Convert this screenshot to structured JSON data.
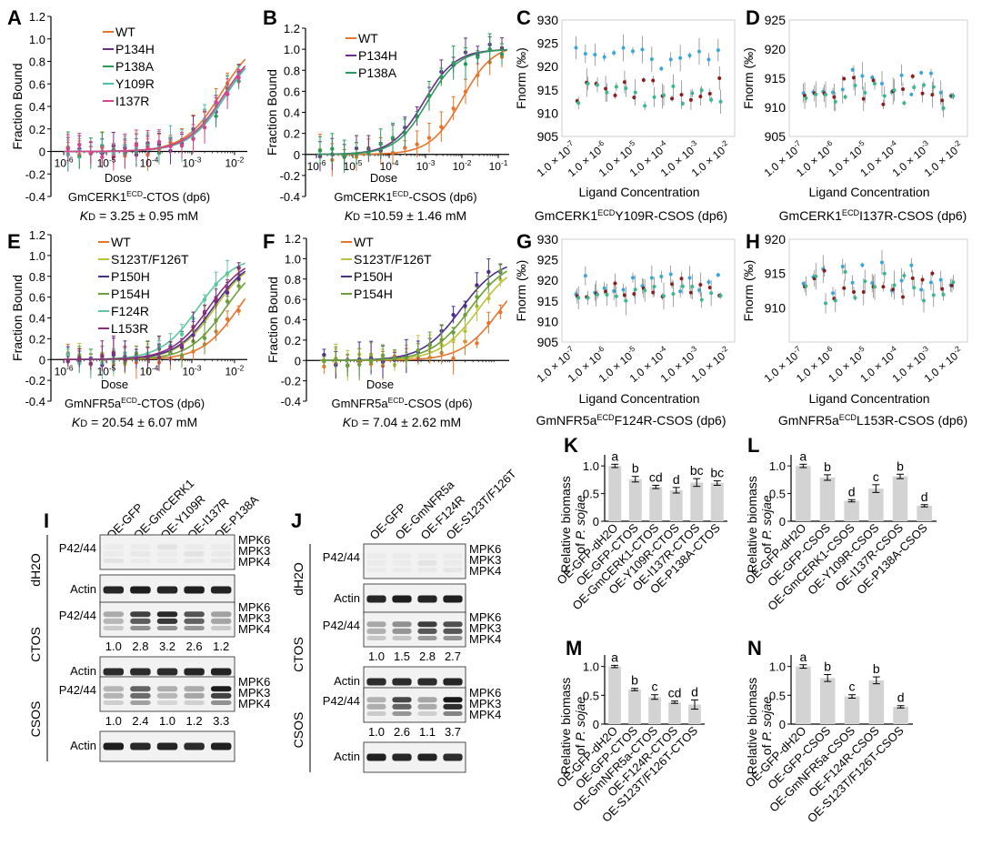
{
  "colors": {
    "WT": "#e8732b",
    "P134H": "#6b2f86",
    "P138A": "#2a9a5c",
    "Y109R": "#4bbfae",
    "I137R": "#d6458b",
    "S123T_F126T": "#b9c23a",
    "P150H": "#4b2f8f",
    "P154H": "#6a9f3a",
    "F124R": "#5ac7a0",
    "L153R": "#8a2f7e",
    "dot_blue": "#3aa7dc",
    "dot_red": "#8b1c1c",
    "dot_green": "#39b98a",
    "bar": "#d3d3d3"
  },
  "chart_data": [
    {
      "panel": "A",
      "type": "line",
      "xlabel": "Dose",
      "ylabel": "Fraction Bound",
      "xticks": [
        "10-6",
        "10-5",
        "10-4",
        "10-3",
        "10-2"
      ],
      "ylim": [
        -0.4,
        1.2
      ],
      "yticks": [
        "-0.4",
        "-0.2",
        "0",
        "0.2",
        "0.4",
        "0.6",
        "0.8",
        "1.0",
        "1.2"
      ],
      "legend": [
        "WT",
        "P134H",
        "P138A",
        "Y109R",
        "I137R"
      ],
      "subtitle": "GmCERK1ECD-CTOS (dp6)",
      "kd": "KD = 3.25 ± 0.95 mM",
      "series": [
        {
          "name": "WT",
          "kd_log": -2.3,
          "top": 1.05
        },
        {
          "name": "P134H",
          "kd_log": -2.25,
          "top": 1.0
        },
        {
          "name": "P138A",
          "kd_log": -2.2,
          "top": 1.0
        },
        {
          "name": "Y109R",
          "kd_log": -2.2,
          "top": 1.0
        },
        {
          "name": "I137R",
          "kd_log": -2.25,
          "top": 1.0
        }
      ]
    },
    {
      "panel": "B",
      "type": "line",
      "xlabel": "Dose",
      "ylabel": "Fraction Bound",
      "xticks": [
        "10-6",
        "10-5",
        "10-4",
        "10-3",
        "10-2",
        "10-1"
      ],
      "ylim": [
        -0.4,
        1.2
      ],
      "yticks": [
        "-0.4",
        "-0.2",
        "0",
        "0.2",
        "0.4",
        "0.6",
        "0.8",
        "1.0",
        "1.2"
      ],
      "legend": [
        "WT",
        "P134H",
        "P138A"
      ],
      "subtitle": "GmCERK1ECD-CSOS (dp6)",
      "kd": "KD =10.59 ± 1.46 mM",
      "series": [
        {
          "name": "WT",
          "kd_log": -2.0,
          "top": 1.05
        },
        {
          "name": "P134H",
          "kd_log": -3.05,
          "top": 1.0
        },
        {
          "name": "P138A",
          "kd_log": -2.95,
          "top": 1.0
        }
      ]
    },
    {
      "panel": "E",
      "type": "line",
      "xlabel": "Dose",
      "ylabel": "Fraction Bound",
      "xticks": [
        "10-6",
        "10-5",
        "10-4",
        "10-3",
        "10-2"
      ],
      "ylim": [
        -0.4,
        1.2
      ],
      "yticks": [
        "-0.4",
        "-0.2",
        "0",
        "0.2",
        "0.4",
        "0.6",
        "0.8",
        "1.0",
        "1.2"
      ],
      "legend": [
        "WT",
        "S123T/F126T",
        "P150H",
        "P154H",
        "F124R",
        "L153R"
      ],
      "subtitle": "GmNFR5aECD-CTOS (dp6)",
      "kd": "KD = 20.54 ± 6.07 mM",
      "series": [
        {
          "name": "WT",
          "kd_log": -1.9,
          "top": 1.0
        },
        {
          "name": "S123T_F126T",
          "kd_log": -2.45,
          "top": 1.0
        },
        {
          "name": "P150H",
          "kd_log": -2.5,
          "top": 1.0
        },
        {
          "name": "P154H",
          "kd_log": -2.2,
          "top": 1.0
        },
        {
          "name": "F124R",
          "kd_log": -2.85,
          "top": 1.0
        },
        {
          "name": "L153R",
          "kd_log": -2.6,
          "top": 1.0
        }
      ]
    },
    {
      "panel": "F",
      "type": "line",
      "xlabel": "Dose",
      "ylabel": "Fraction Bound",
      "xticks": [],
      "ylim": [
        -0.4,
        1.2
      ],
      "yticks": [
        "-0.4",
        "-0.2",
        "0",
        "0.2",
        "0.4",
        "0.6",
        "0.8",
        "1.0",
        "1.2"
      ],
      "legend": [
        "WT",
        "S123T/F126T",
        "P150H",
        "P154H"
      ],
      "subtitle": "GmNFR5aECD-CSOS (dp6)",
      "kd": "KD = 7.04 ± 2.62 mM",
      "series": [
        {
          "name": "WT",
          "kd_log": -1.9,
          "top": 1.0
        },
        {
          "name": "S123T_F126T",
          "kd_log": -2.4,
          "top": 1.0
        },
        {
          "name": "P150H",
          "kd_log": -2.8,
          "top": 1.0
        },
        {
          "name": "P154H",
          "kd_log": -2.6,
          "top": 1.0
        }
      ]
    },
    {
      "panel": "C",
      "type": "scatter",
      "xlabel": "Ligand Concentration",
      "ylabel": "Fnorm (‰)",
      "ylim": [
        905,
        930
      ],
      "yticks": [
        "930",
        "925",
        "920",
        "915",
        "910",
        "905"
      ],
      "xticks": [
        "1.0 × 10-7",
        "1.0 × 10-6",
        "1.0 × 10-5",
        "1.0 × 10-4",
        "1.0 × 10-3",
        "1.0 × 10-2"
      ],
      "subtitle": "GmCERK1ECDY109R-CSOS (dp6)",
      "series": [
        {
          "name": "blue",
          "center": 922
        },
        {
          "name": "red",
          "center": 915
        },
        {
          "name": "green",
          "center": 914
        }
      ]
    },
    {
      "panel": "D",
      "type": "scatter",
      "xlabel": "Ligand Concentration",
      "ylabel": "Fnorm (‰)",
      "ylim": [
        905,
        925
      ],
      "yticks": [
        "925",
        "920",
        "915",
        "910",
        "905"
      ],
      "xticks": [
        "1.0 × 10-7",
        "1.0 × 10-6",
        "1.0 × 10-5",
        "1.0 × 10-4",
        "1.0 × 10-3",
        "1.0 × 10-2"
      ],
      "subtitle": "GmCERK1ECDI137R-CSOS (dp6)",
      "series": [
        {
          "name": "blue",
          "center": 914
        },
        {
          "name": "red",
          "center": 913
        },
        {
          "name": "green",
          "center": 912
        }
      ]
    },
    {
      "panel": "G",
      "type": "scatter",
      "xlabel": "Ligand Concentration",
      "ylabel": "Fnorm (‰)",
      "ylim": [
        905,
        930
      ],
      "yticks": [
        "930",
        "925",
        "920",
        "915",
        "910",
        "905"
      ],
      "xticks": [
        "1.0 × 10-7",
        "1.0 × 10-6",
        "1.0 × 10-5",
        "1.0 × 10-4",
        "1.0 × 10-3",
        "1.0 × 10-2"
      ],
      "subtitle": "GmNFR5aECDF124R-CSOS (dp6)",
      "series": [
        {
          "name": "blue",
          "center": 919
        },
        {
          "name": "red",
          "center": 918
        },
        {
          "name": "green",
          "center": 917
        }
      ]
    },
    {
      "panel": "H",
      "type": "scatter",
      "xlabel": "Ligand Concentration",
      "ylabel": "Fnorm (‰)",
      "ylim": [
        905,
        920
      ],
      "yticks": [
        "920",
        "915",
        "910"
      ],
      "xticks": [
        "1.0 × 10-7",
        "1.0 × 10-6",
        "1.0 × 10-5",
        "1.0 × 10-4",
        "1.0 × 10-3",
        "1.0 × 10-2"
      ],
      "subtitle": "GmNFR5aECDL153R-CSOS (dp6)",
      "series": [
        {
          "name": "blue",
          "center": 914.5
        },
        {
          "name": "red",
          "center": 913.5
        },
        {
          "name": "green",
          "center": 913
        }
      ]
    },
    {
      "panel": "K",
      "type": "bar",
      "ylabel": "Relative biomass",
      "ylabel2": "of P. sojae",
      "ylim": [
        0,
        1.2
      ],
      "yticks": [
        "0",
        "0.5",
        "1.0"
      ],
      "categories": [
        "OE-GFP-dH2O",
        "OE-GFP-CTOS",
        "OE-GmCERK1-CTOS",
        "OE-Y109R-CTOS",
        "OE-I137R-CTOS",
        "OE-P138A-CTOS"
      ],
      "values": [
        1.0,
        0.76,
        0.62,
        0.56,
        0.7,
        0.69
      ],
      "errors": [
        0.03,
        0.05,
        0.03,
        0.05,
        0.07,
        0.04
      ],
      "letters": [
        "a",
        "b",
        "cd",
        "d",
        "bc",
        "bc"
      ]
    },
    {
      "panel": "L",
      "type": "bar",
      "ylabel": "Relative biomass",
      "ylabel2": "of P. sojae",
      "ylim": [
        0,
        1.2
      ],
      "yticks": [
        "0",
        "0.5",
        "1.0"
      ],
      "categories": [
        "OE-GFP-dH2O",
        "OE-GFP-CSOS",
        "OE-GmCERK1-CSOS",
        "OE-Y109R-CSOS",
        "OE-I137R-CSOS",
        "OE-P138A-CSOS"
      ],
      "values": [
        1.0,
        0.79,
        0.37,
        0.59,
        0.81,
        0.28
      ],
      "errors": [
        0.03,
        0.05,
        0.02,
        0.07,
        0.04,
        0.02
      ],
      "letters": [
        "a",
        "b",
        "d",
        "c",
        "b",
        "d"
      ]
    },
    {
      "panel": "M",
      "type": "bar",
      "ylabel": "Relative biomass",
      "ylabel2": "of P. sojae",
      "ylim": [
        0,
        1.2
      ],
      "yticks": [
        "0",
        "0.5",
        "1.0"
      ],
      "categories": [
        "OE-GFP-dH2O",
        "OE-GFP-CTOS",
        "OE-GmNFR5a-CTOS",
        "OE-F124R-CTOS",
        "OE-S123T/F126T-CTOS"
      ],
      "values": [
        1.0,
        0.6,
        0.47,
        0.38,
        0.34
      ],
      "errors": [
        0.02,
        0.02,
        0.04,
        0.02,
        0.08
      ],
      "letters": [
        "a",
        "b",
        "c",
        "cd",
        "d"
      ]
    },
    {
      "panel": "N",
      "type": "bar",
      "ylabel": "Relative biomass",
      "ylabel2": "of P. sojae",
      "ylim": [
        0,
        1.2
      ],
      "yticks": [
        "0",
        "0.5",
        "1.0"
      ],
      "categories": [
        "OE-GFP-dH2O",
        "OE-GFP-CSOS",
        "OE-GmNFR5a-CSOS",
        "OE-F124R-CSOS",
        "OE-S123T/F126T-CSOS"
      ],
      "values": [
        1.0,
        0.8,
        0.48,
        0.76,
        0.3
      ],
      "errors": [
        0.03,
        0.06,
        0.03,
        0.06,
        0.02
      ],
      "letters": [
        "a",
        "b",
        "c",
        "b",
        "d"
      ]
    }
  ],
  "blots": {
    "I": {
      "lanes": [
        "OE-GFP",
        "OE-GmCERK1",
        "OE-Y109R",
        "OE-I137R",
        "OE-P138A"
      ],
      "rows": [
        {
          "treatment": "dH2O",
          "quant": []
        },
        {
          "treatment": "CTOS",
          "quant": [
            "1.0",
            "2.8",
            "3.2",
            "2.6",
            "1.2"
          ]
        },
        {
          "treatment": "CSOS",
          "quant": [
            "1.0",
            "2.4",
            "1.0",
            "1.2",
            "3.3"
          ]
        }
      ]
    },
    "J": {
      "lanes": [
        "OE-GFP",
        "OE-GmNFR5a",
        "OE-F124R",
        "OE-S123T/F126T"
      ],
      "rows": [
        {
          "treatment": "dH2O",
          "quant": []
        },
        {
          "treatment": "CTOS",
          "quant": [
            "1.0",
            "1.5",
            "2.8",
            "2.7"
          ]
        },
        {
          "treatment": "CSOS",
          "quant": [
            "1.0",
            "2.6",
            "1.1",
            "3.7"
          ]
        }
      ]
    },
    "labels": {
      "p4244": "P42/44",
      "actin": "Actin",
      "mpk6": "MPK6",
      "mpk3": "MPK3",
      "mpk4": "MPK4",
      "dose": "Dose"
    }
  }
}
